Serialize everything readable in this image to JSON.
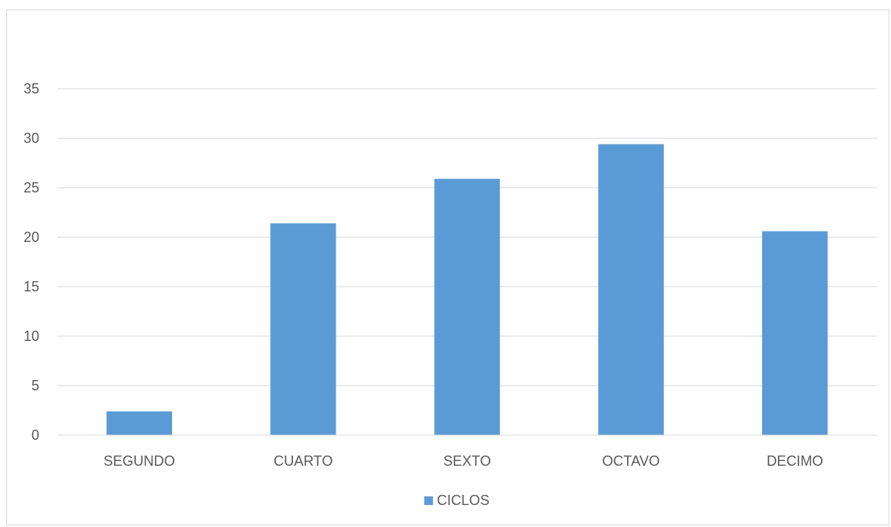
{
  "chart_data": {
    "type": "bar",
    "categories": [
      "SEGUNDO",
      "CUARTO",
      "SEXTO",
      "OCTAVO",
      "DECIMO"
    ],
    "series": [
      {
        "name": "CICLOS",
        "values": [
          2.4,
          21.4,
          25.9,
          29.4,
          20.6
        ],
        "color": "#5b9bd5"
      }
    ],
    "yticks": [
      0,
      5,
      10,
      15,
      20,
      25,
      30,
      35
    ],
    "ylim": [
      0,
      35
    ],
    "grid": true,
    "gridline_color": "#d9d9d9",
    "tick_label_color": "#595959",
    "legend_position": "bottom"
  }
}
